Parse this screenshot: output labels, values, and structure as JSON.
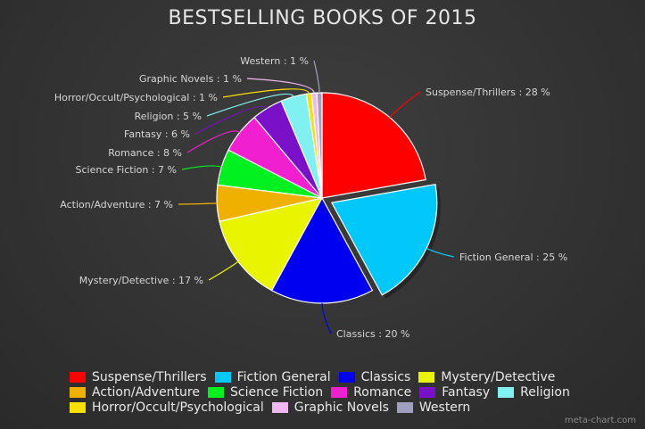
{
  "title": "BESTSELLING BOOKS OF 2015",
  "footer": "meta-chart.com",
  "chart_data": {
    "type": "pie",
    "title": "BESTSELLING BOOKS OF 2015",
    "legend": "bottom",
    "exploded": [
      "Fiction General"
    ],
    "slices": [
      {
        "label": "Suspense/Thrillers",
        "value": 28,
        "text": "Suspense/Thrillers : 28 %",
        "color": "#ff0000"
      },
      {
        "label": "Fiction General",
        "value": 25,
        "text": "Fiction General : 25 %",
        "color": "#00c8f8"
      },
      {
        "label": "Classics",
        "value": 20,
        "text": "Classics : 20 %",
        "color": "#0000f0"
      },
      {
        "label": "Mystery/Detective",
        "value": 17,
        "text": "Mystery/Detective : 17 %",
        "color": "#e8f400"
      },
      {
        "label": "Action/Adventure",
        "value": 7,
        "text": "Action/Adventure : 7 %",
        "color": "#f0b000"
      },
      {
        "label": "Science Fiction",
        "value": 7,
        "text": "Science Fiction : 7 %",
        "color": "#00f020"
      },
      {
        "label": "Romance",
        "value": 8,
        "text": "Romance : 8 %",
        "color": "#f020d0"
      },
      {
        "label": "Fantasy",
        "value": 6,
        "text": "Fantasy : 6 %",
        "color": "#7a10c8"
      },
      {
        "label": "Religion",
        "value": 5,
        "text": "Religion : 5 %",
        "color": "#80f0f0"
      },
      {
        "label": "Horror/Occult/Psychological",
        "value": 1,
        "text": "Horror/Occult/Psychological : 1 %",
        "color": "#f8e000"
      },
      {
        "label": "Graphic Novels",
        "value": 1,
        "text": "Graphic Novels : 1 %",
        "color": "#f0b8f0"
      },
      {
        "label": "Western",
        "value": 1,
        "text": "Western : 1 %",
        "color": "#a0a0c0"
      }
    ]
  }
}
